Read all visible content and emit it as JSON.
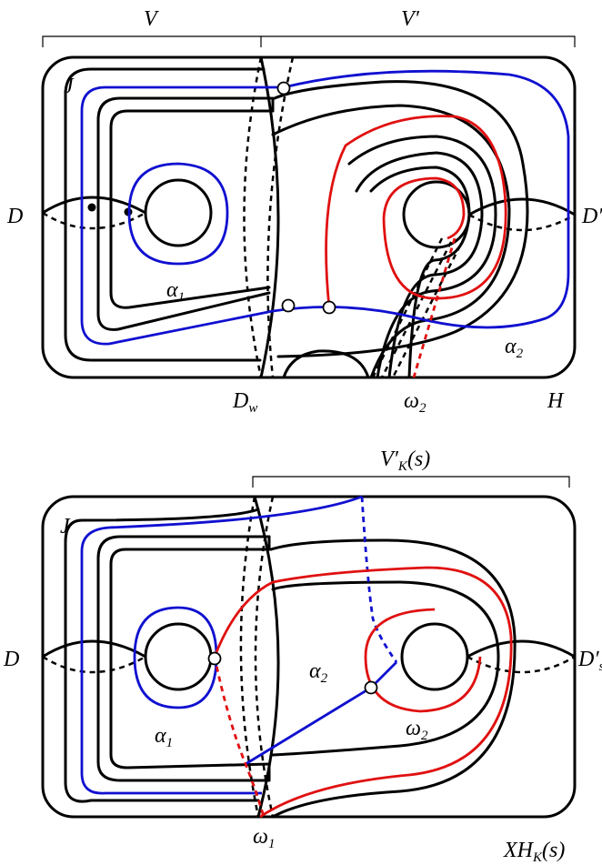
{
  "top": {
    "bracket_left": "V",
    "bracket_right": "V′",
    "label_J": "J",
    "label_D": "D",
    "label_Dprime": "D′",
    "label_alpha1": "α",
    "label_alpha1_sub": "1",
    "label_alpha2": "α",
    "label_alpha2_sub": "2",
    "label_Dw": "D",
    "label_Dw_sub": "w",
    "label_omega2": "ω",
    "label_omega2_sub": "2",
    "label_H": "H"
  },
  "bottom": {
    "bracket": "V′",
    "bracket_sub": "K",
    "bracket_suffix": "(s)",
    "label_J": "J",
    "label_D": "D",
    "label_Ds": "D′",
    "label_Ds_sub": "s",
    "label_alpha1": "α",
    "label_alpha1_sub": "1",
    "label_alpha2": "α",
    "label_alpha2_sub": "2",
    "label_omega2": "ω",
    "label_omega2_sub": "2",
    "label_omega1": "ω",
    "label_omega1_sub": "1",
    "label_XHK": "XH",
    "label_XHK_sub": "K",
    "label_XHK_suffix": "(s)"
  },
  "colors": {
    "alpha": "#1010d0",
    "omega": "#e01010",
    "curve": "#000000"
  }
}
